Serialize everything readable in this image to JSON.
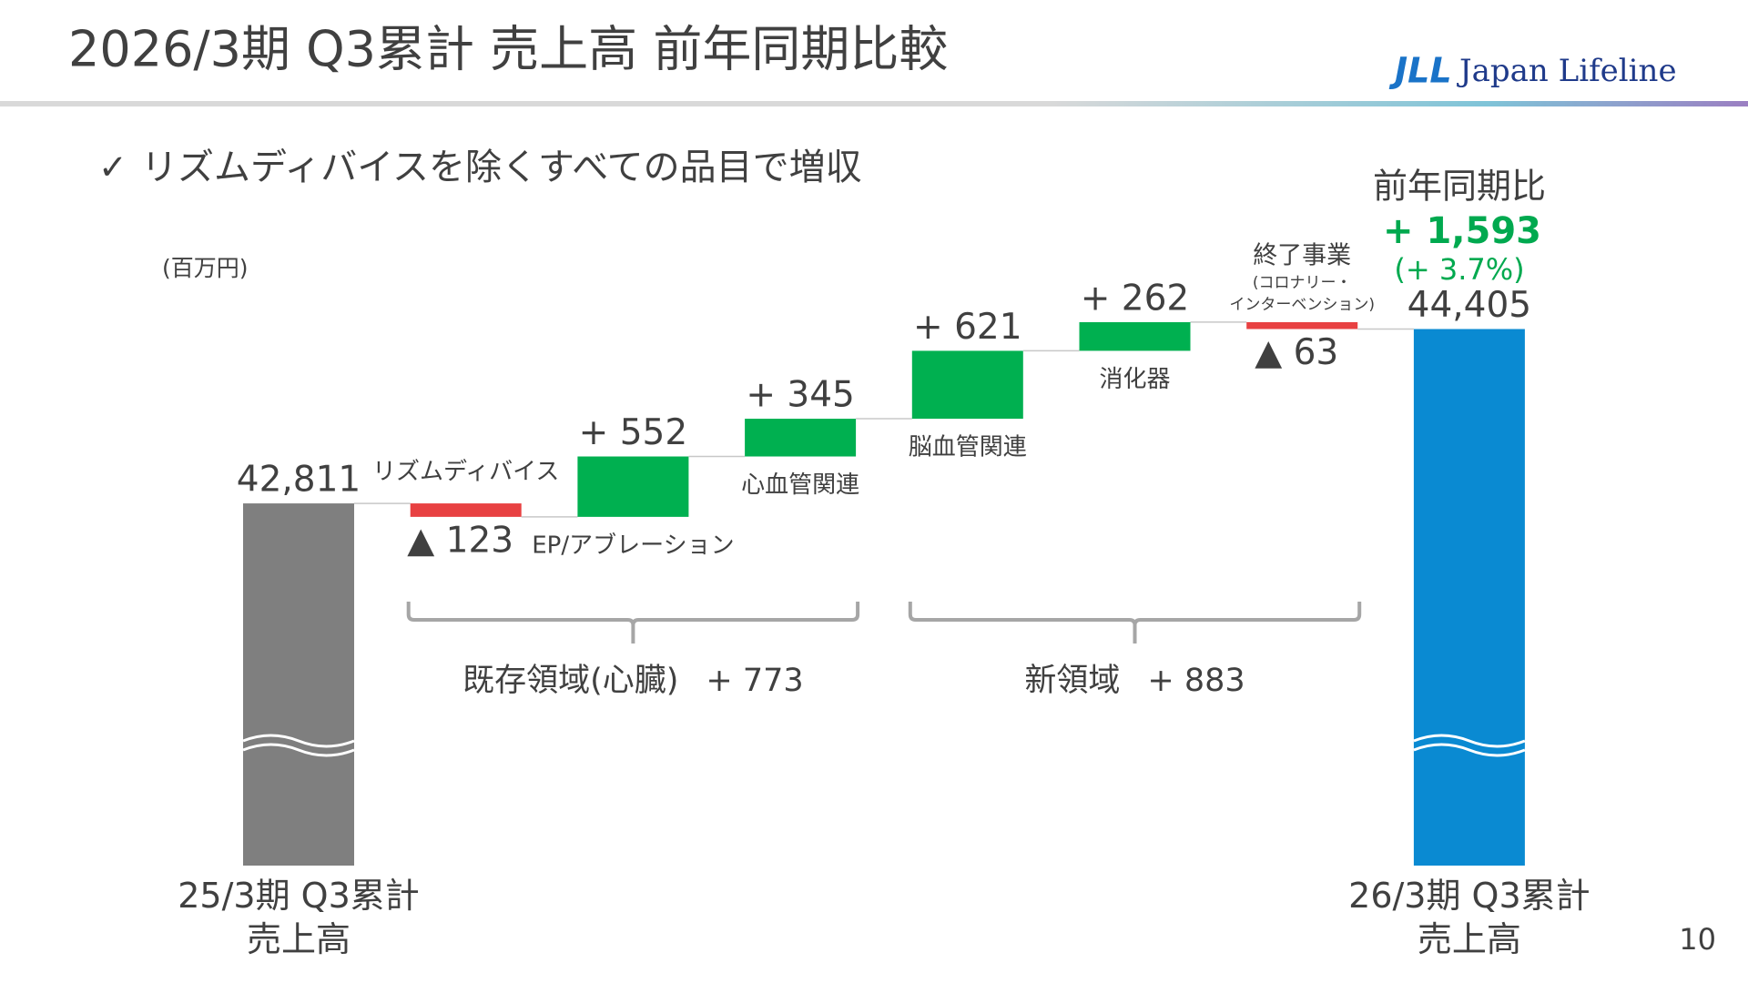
{
  "header": {
    "title": "2026/3期 Q3累計 売上高 前年同期比較",
    "logo_mark": "JLL",
    "logo_text": "Japan Lifeline"
  },
  "subtitle": "リズムディバイスを除くすべての品目で増収",
  "page_number": "10",
  "chart_data": {
    "type": "waterfall",
    "unit": "(百万円)",
    "categories": [
      "25/3期 Q3累計\n売上高",
      "リズムディバイス",
      "EP/アブレーション",
      "心血管関連",
      "脳血管関連",
      "消化器",
      "終了事業",
      "26/3期 Q3累計\n売上高"
    ],
    "category_notes": [
      null,
      null,
      null,
      null,
      null,
      null,
      "(コロナリー・\nインターベンション)",
      null
    ],
    "values": [
      42811,
      -123,
      552,
      345,
      621,
      262,
      -63,
      44405
    ],
    "value_labels": [
      "42,811",
      "▲ 123",
      "+ 552",
      "+ 345",
      "+ 621",
      "+ 262",
      "▲ 63",
      "44,405"
    ],
    "colors": [
      "#7f7f7f",
      "#e84142",
      "#00b050",
      "#00b050",
      "#00b050",
      "#00b050",
      "#e84142",
      "#0a8ad2"
    ],
    "ylim": [
      39500,
      45000
    ],
    "axis_break": true,
    "groups": [
      {
        "name": "既存領域(心臓)",
        "label": "+ 773"
      },
      {
        "name": "新領域",
        "label": "+ 883"
      }
    ],
    "summary": {
      "title": "前年同期比",
      "change": "+ 1,593",
      "change_pct": "(+ 3.7%)"
    }
  }
}
